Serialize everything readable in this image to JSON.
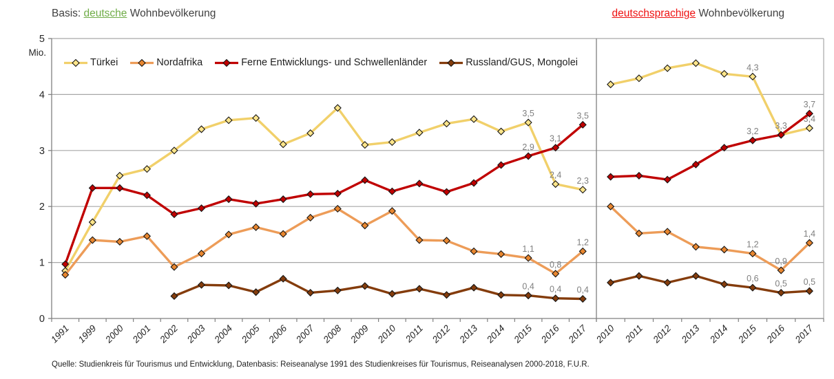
{
  "titles": {
    "left_prefix": "Basis: ",
    "left_highlight": "deutsche",
    "left_suffix": " Wohnbevölkerung",
    "right_highlight": "deutschsprachige",
    "right_suffix": " Wohnbevölkerung"
  },
  "source": "Quelle: Studienkreis für Tourismus und Entwicklung, Datenbasis: Reiseanalyse 1991 des Studienkreises für Tourismus, Reiseanalysen 2000-2018, F.U.R.",
  "colors": {
    "grid": "#a6a6a6",
    "axis": "#808080",
    "data_label": "#7f7f7f",
    "tick_text": "#262626",
    "title_text": "#3f3f3f",
    "green_highlight": "#6fac47",
    "red_highlight": "#ee1111",
    "series": {
      "Türkei": {
        "line": "#f1d06a",
        "marker": "#ffe58a"
      },
      "Nordafrika": {
        "line": "#ed9c58",
        "marker": "#e8862f"
      },
      "Ferne Entwicklungs- und Schwellenländer": {
        "line": "#c00000",
        "marker": "#c00000"
      },
      "Russland/GUS, Mongolei": {
        "line": "#843c0c",
        "marker": "#843c0c"
      }
    }
  },
  "y_axis": {
    "unit": "Mio.",
    "tick_labels": [
      "5",
      "4",
      "3",
      "2",
      "1",
      "0"
    ],
    "min": 0,
    "max": 5
  },
  "chart_data": {
    "type": "line",
    "title_left": "Basis: deutsche Wohnbevölkerung",
    "title_right": "deutschsprachige Wohnbevölkerung",
    "ylabel": "Mio.",
    "ylim": [
      0,
      5
    ],
    "grid": true,
    "legend_position": "top-left-inside",
    "legend": [
      "Türkei",
      "Nordafrika",
      "Ferne Entwicklungs- und Schwellenländer",
      "Russland/GUS, Mongolei"
    ],
    "panels": [
      {
        "name": "left",
        "basis": "deutsche Wohnbevölkerung",
        "categories": [
          "1991",
          "1999",
          "2000",
          "2001",
          "2002",
          "2003",
          "2004",
          "2005",
          "2006",
          "2007",
          "2008",
          "2009",
          "2010",
          "2011",
          "2012",
          "2013",
          "2014",
          "2015",
          "2016",
          "2017"
        ],
        "series": [
          {
            "name": "Türkei",
            "values": [
              0.85,
              1.72,
              2.55,
              2.67,
              3.0,
              3.38,
              3.54,
              3.58,
              3.11,
              3.31,
              3.76,
              3.1,
              3.15,
              3.32,
              3.48,
              3.56,
              3.34,
              3.5,
              2.4,
              2.3
            ],
            "labels": {
              "2015": "3,5",
              "2016": "2,4",
              "2017": "2,3"
            }
          },
          {
            "name": "Nordafrika",
            "values": [
              0.78,
              1.4,
              1.37,
              1.47,
              0.92,
              1.16,
              1.5,
              1.63,
              1.51,
              1.8,
              1.96,
              1.66,
              1.92,
              1.4,
              1.39,
              1.2,
              1.15,
              1.08,
              0.8,
              1.2
            ],
            "labels": {
              "2015": "1,1",
              "2016": "0,8",
              "2017": "1,2"
            }
          },
          {
            "name": "Ferne Entwicklungs- und Schwellenländer",
            "values": [
              0.97,
              2.33,
              2.33,
              2.2,
              1.86,
              1.97,
              2.13,
              2.05,
              2.13,
              2.22,
              2.23,
              2.47,
              2.27,
              2.41,
              2.26,
              2.42,
              2.74,
              2.9,
              3.05,
              3.46
            ],
            "labels": {
              "2015": "2,9",
              "2016": "3,1",
              "2017": "3,5"
            }
          },
          {
            "name": "Russland/GUS, Mongolei",
            "values": [
              null,
              null,
              null,
              null,
              0.4,
              0.6,
              0.59,
              0.47,
              0.71,
              0.46,
              0.5,
              0.58,
              0.44,
              0.53,
              0.42,
              0.55,
              0.42,
              0.41,
              0.36,
              0.35
            ],
            "labels": {
              "2015": "0,4",
              "2016": "0,4",
              "2017": "0,4"
            }
          }
        ]
      },
      {
        "name": "right",
        "basis": "deutschsprachige Wohnbevölkerung",
        "categories": [
          "2010",
          "2011",
          "2012",
          "2013",
          "2014",
          "2015",
          "2016",
          "2017"
        ],
        "series": [
          {
            "name": "Türkei",
            "values": [
              4.18,
              4.29,
              4.47,
              4.56,
              4.37,
              4.32,
              3.28,
              3.4
            ],
            "labels": {
              "2015": "4,3",
              "2016": "3,3",
              "2017": "3,4"
            }
          },
          {
            "name": "Nordafrika",
            "values": [
              2.0,
              1.52,
              1.55,
              1.28,
              1.23,
              1.16,
              0.86,
              1.35
            ],
            "labels": {
              "2015": "1,2",
              "2016": "0,9",
              "2017": "1,4"
            }
          },
          {
            "name": "Ferne Entwicklungs- und Schwellenländer",
            "values": [
              2.53,
              2.55,
              2.48,
              2.75,
              3.05,
              3.18,
              3.28,
              3.66
            ],
            "labels": {
              "2015": "3,2",
              "2017": "3,7"
            }
          },
          {
            "name": "Russland/GUS, Mongolei",
            "values": [
              0.64,
              0.76,
              0.64,
              0.76,
              0.61,
              0.55,
              0.46,
              0.49
            ],
            "labels": {
              "2015": "0,6",
              "2016": "0,5",
              "2017": "0,5"
            }
          }
        ]
      }
    ]
  }
}
